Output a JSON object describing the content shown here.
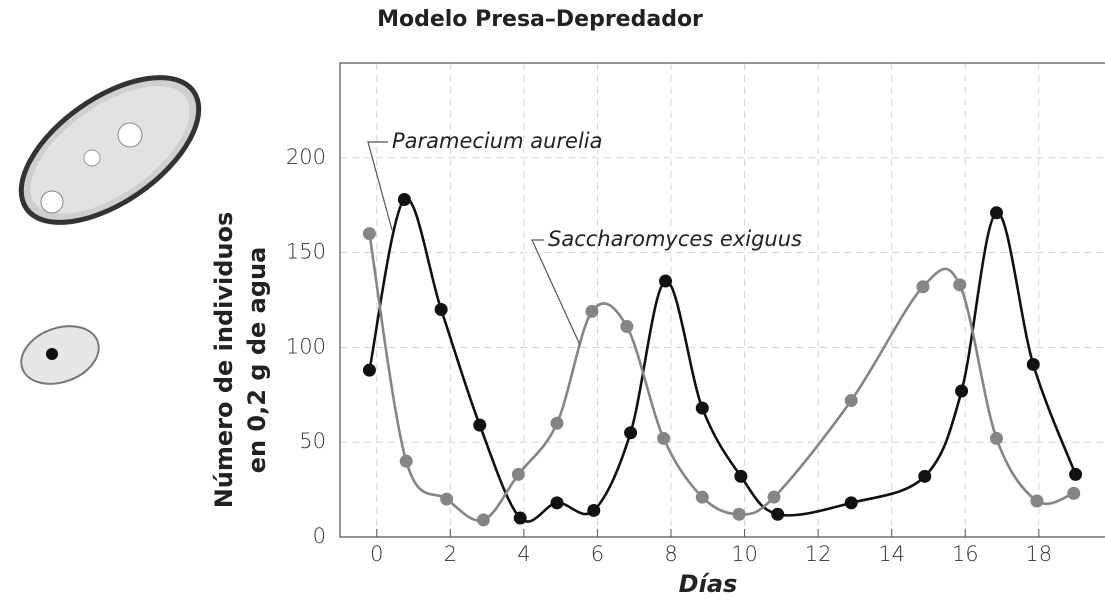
{
  "chart_data": {
    "type": "scatter",
    "title": "Modelo Presa–Depredador",
    "xlabel": "Días",
    "ylabel": [
      "Número de individuos",
      "en 0,2 g de agua"
    ],
    "xlim": [
      -1,
      19.8
    ],
    "ylim": [
      0,
      250
    ],
    "xticks": [
      0,
      2,
      4,
      6,
      8,
      10,
      12,
      14,
      16,
      18
    ],
    "yticks": [
      0,
      50,
      100,
      150,
      200
    ],
    "grid": true,
    "series": [
      {
        "name": "Paramecium aurelia",
        "color": "#111111",
        "x": [
          -0.2,
          0.75,
          1.75,
          2.8,
          3.9,
          4.9,
          5.9,
          6.9,
          7.85,
          8.85,
          9.9,
          10.9,
          12.9,
          14.9,
          15.9,
          16.85,
          17.85,
          19
        ],
        "values": [
          88,
          178,
          120,
          59,
          10,
          18,
          14,
          55,
          135,
          68,
          32,
          12,
          18,
          32,
          77,
          171,
          91,
          33
        ]
      },
      {
        "name": "Saccharomyces exiguus",
        "color": "#858585",
        "x": [
          -0.2,
          0.8,
          1.9,
          2.9,
          3.85,
          4.9,
          5.85,
          6.8,
          7.8,
          8.85,
          9.85,
          10.8,
          12.9,
          14.85,
          15.85,
          16.85,
          17.95,
          18.95
        ],
        "values": [
          160,
          40,
          20,
          9,
          33,
          60,
          119,
          111,
          52,
          21,
          12,
          21,
          72,
          132,
          133,
          52,
          19,
          23
        ]
      }
    ]
  }
}
